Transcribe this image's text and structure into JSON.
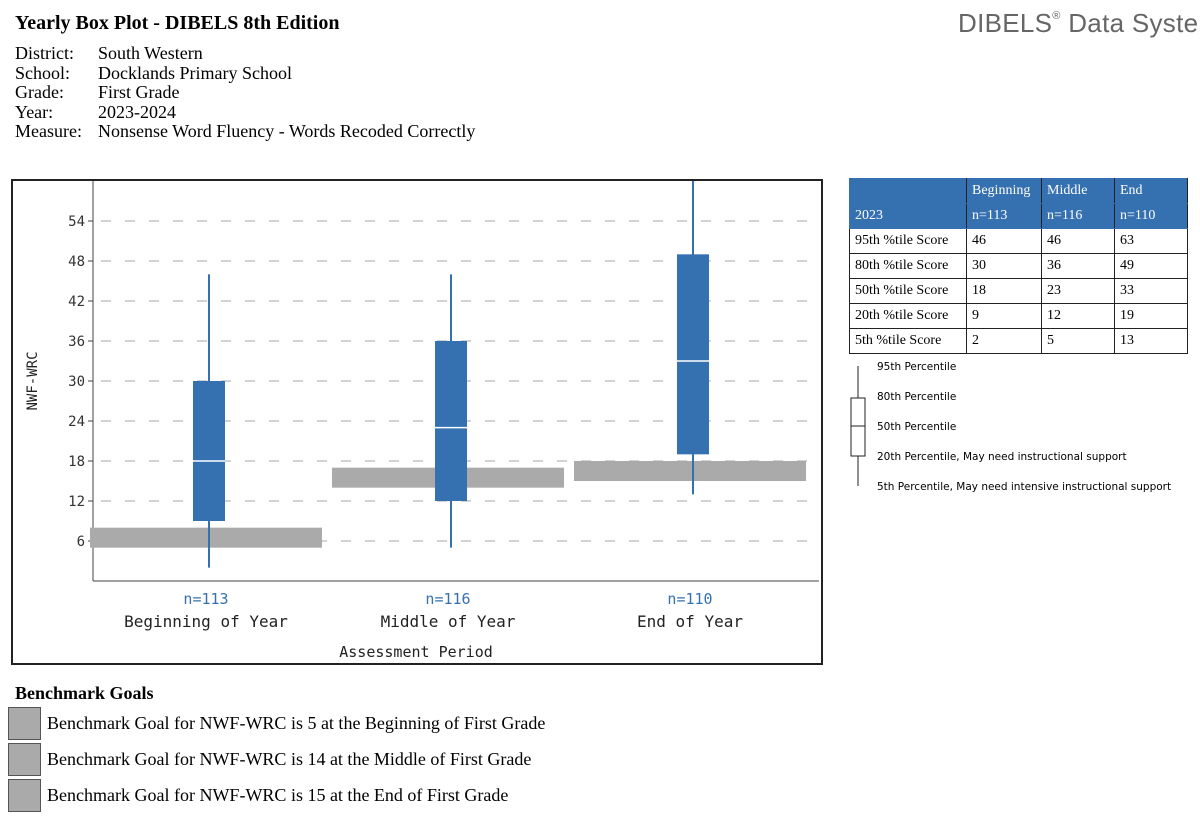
{
  "header": {
    "title": "Yearly Box Plot - DIBELS 8th Edition",
    "brand": "DIBELS",
    "brand_mark": "®",
    "brand_suffix": " Data System"
  },
  "meta": {
    "district_label": "District:",
    "district": "South Western",
    "school_label": "School:",
    "school": "Docklands Primary School",
    "grade_label": "Grade:",
    "grade": "First Grade",
    "year_label": "Year:",
    "year": "2023-2024",
    "measure_label": "Measure:",
    "measure": "Nonsense Word Fluency - Words Recoded Correctly"
  },
  "chart_data": {
    "type": "box",
    "xlabel": "Assessment Period",
    "ylabel": "NWF-WRC",
    "y_ticks": [
      6,
      12,
      18,
      24,
      30,
      36,
      42,
      48,
      54
    ],
    "ylim": [
      0,
      60
    ],
    "grid": "horizontal dashed",
    "box_color": "#3570b0",
    "benchmark_color": "#aaaaaa",
    "categories": [
      "Beginning of Year",
      "Middle of Year",
      "End of Year"
    ],
    "n_labels": [
      "n=113",
      "n=116",
      "n=110"
    ],
    "boxes": [
      {
        "p5": 2,
        "p20": 9,
        "p50": 18,
        "p80": 30,
        "p95": 46
      },
      {
        "p5": 5,
        "p20": 12,
        "p50": 23,
        "p80": 36,
        "p95": 46
      },
      {
        "p5": 13,
        "p20": 19,
        "p50": 33,
        "p80": 49,
        "p95": 63
      }
    ],
    "benchmark_bands": [
      {
        "low": 5,
        "high": 8
      },
      {
        "low": 14,
        "high": 17
      },
      {
        "low": 15,
        "high": 18
      }
    ]
  },
  "table": {
    "header": [
      "",
      "Beginning",
      "Middle",
      "End"
    ],
    "subheader": [
      "2023",
      "n=113",
      "n=116",
      "n=110"
    ],
    "rows": [
      [
        "95th %tile Score",
        "46",
        "46",
        "63"
      ],
      [
        "80th %tile Score",
        "30",
        "36",
        "49"
      ],
      [
        "50th %tile Score",
        "18",
        "23",
        "33"
      ],
      [
        "20th %tile Score",
        "9",
        "12",
        "19"
      ],
      [
        "5th %tile Score",
        "2",
        "5",
        "13"
      ]
    ]
  },
  "legend": {
    "items": [
      "95th Percentile",
      "80th Percentile",
      "50th Percentile",
      "20th Percentile, May need instructional support",
      "5th Percentile, May need intensive instructional support"
    ]
  },
  "goals": {
    "title": "Benchmark Goals",
    "items": [
      "Benchmark Goal for NWF-WRC is 5 at the Beginning of First Grade",
      "Benchmark Goal for NWF-WRC is 14 at the Middle of First Grade",
      "Benchmark Goal for NWF-WRC is 15 at the End of First Grade"
    ]
  }
}
